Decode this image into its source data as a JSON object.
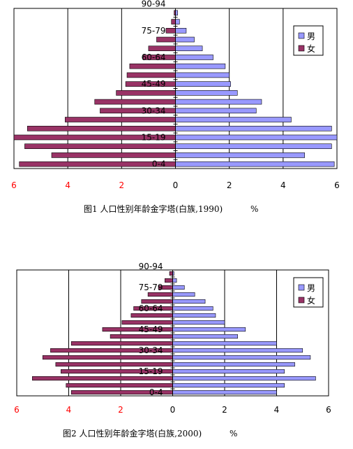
{
  "chart_data": [
    {
      "type": "bar",
      "orientation": "horizontal",
      "layout": "population-pyramid",
      "caption_prefix": "图1",
      "caption": "人口性别年龄金字塔(白族,1990)",
      "unit": "%",
      "ylabels": [
        "0-4",
        "15-19",
        "30-34",
        "45-49",
        "60-64",
        "75-79",
        "90-94"
      ],
      "xticks": [
        "6",
        "4",
        "2",
        "0",
        "2",
        "4",
        "6"
      ],
      "xlim": [
        -6,
        6
      ],
      "grid": true,
      "legend_position": "top-right",
      "series": [
        {
          "name": "男",
          "color": "#9999ff",
          "values": [
            5.9,
            4.8,
            5.8,
            6.0,
            5.8,
            4.3,
            3.0,
            3.2,
            2.3,
            2.05,
            2.0,
            1.85,
            1.4,
            1.0,
            0.7,
            0.4,
            0.15,
            0.08
          ]
        },
        {
          "name": "女",
          "color": "#993366",
          "values": [
            5.8,
            4.6,
            5.6,
            6.0,
            5.5,
            4.1,
            2.8,
            3.0,
            2.2,
            1.85,
            1.8,
            1.7,
            1.2,
            1.0,
            0.7,
            0.35,
            0.15,
            0.05
          ]
        }
      ]
    },
    {
      "type": "bar",
      "orientation": "horizontal",
      "layout": "population-pyramid",
      "caption_prefix": "图2",
      "caption": "人口性别年龄金字塔(白族,2000)",
      "unit": "%",
      "ylabels": [
        "0-4",
        "15-19",
        "30-34",
        "45-49",
        "60-64",
        "75-79",
        "90-94"
      ],
      "xticks": [
        "6",
        "4",
        "2",
        "0",
        "2",
        "4",
        "6"
      ],
      "xlim": [
        -6,
        6
      ],
      "grid": true,
      "legend_position": "top-right",
      "series": [
        {
          "name": "男",
          "color": "#9999ff",
          "values": [
            4.0,
            4.3,
            5.5,
            4.3,
            4.7,
            5.3,
            5.0,
            4.0,
            2.5,
            2.8,
            2.0,
            1.65,
            1.55,
            1.25,
            0.85,
            0.45,
            0.15,
            0.05
          ]
        },
        {
          "name": "女",
          "color": "#993366",
          "values": [
            3.9,
            4.1,
            5.4,
            4.3,
            4.5,
            5.0,
            4.7,
            3.9,
            2.4,
            2.7,
            1.95,
            1.6,
            1.5,
            1.2,
            0.95,
            0.55,
            0.3,
            0.12
          ]
        }
      ]
    }
  ]
}
